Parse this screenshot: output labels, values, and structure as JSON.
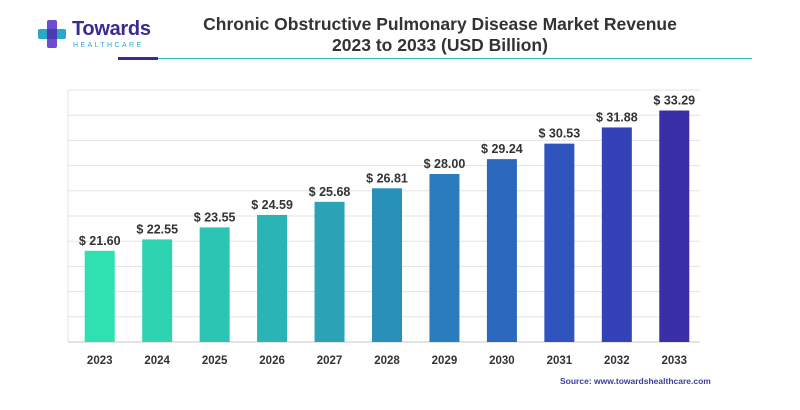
{
  "logo": {
    "name": "Towards",
    "subtitle": "HEALTHCARE",
    "colors": {
      "primary": "#3b2a8f",
      "accent": "#2aa8c9"
    }
  },
  "header": {
    "title_line1": "Chronic Obstructive Pulmonary Disease Market Revenue",
    "title_line2": "2023 to 2033 (USD Billion)"
  },
  "source": "Source: www.towardshealthcare.com",
  "chart_data": {
    "type": "bar",
    "title": "Chronic Obstructive Pulmonary Disease Market Revenue 2023 to 2033 (USD Billion)",
    "categories": [
      "2023",
      "2024",
      "2025",
      "2026",
      "2027",
      "2028",
      "2029",
      "2030",
      "2031",
      "2032",
      "2033"
    ],
    "values": [
      21.6,
      22.55,
      23.55,
      24.59,
      25.68,
      26.81,
      28.0,
      29.24,
      30.53,
      31.88,
      33.29
    ],
    "value_labels": [
      "$ 21.60",
      "$ 22.55",
      "$ 23.55",
      "$ 24.59",
      "$ 25.68",
      "$ 26.81",
      "$ 28.00",
      "$ 29.24",
      "$ 30.53",
      "$ 31.88",
      "$ 33.29"
    ],
    "colors": [
      "#2fe0b0",
      "#2ed3b2",
      "#2cc5b3",
      "#2bb4b5",
      "#2aa3b7",
      "#2990ba",
      "#2a7dbc",
      "#2c68bd",
      "#2f54bd",
      "#3442b8",
      "#3a2fa6"
    ],
    "xlabel": "",
    "ylabel": "",
    "ylim": [
      14,
      35
    ],
    "grid": true,
    "legend": "none"
  }
}
